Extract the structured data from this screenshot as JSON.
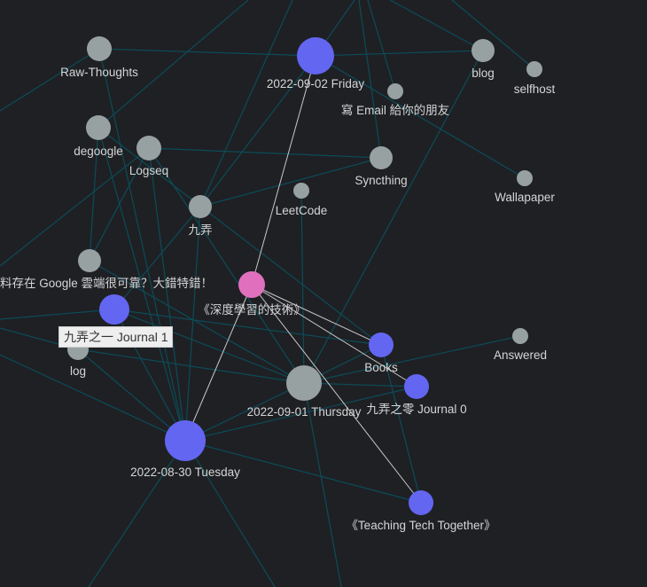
{
  "colors": {
    "background": "#1f2024",
    "edge": "#0b4c58",
    "highlight_edge": "#c8c8c8",
    "page_node": "#97a1a1",
    "journal_node": "#6366f1",
    "selected_node": "#e070be",
    "label": "#d4d6d6"
  },
  "nodes": [
    {
      "id": "raw",
      "label": "Raw-Thoughts",
      "kind": "page"
    },
    {
      "id": "fri",
      "label": "2022-09-02 Friday",
      "kind": "journal"
    },
    {
      "id": "blog",
      "label": "blog",
      "kind": "page"
    },
    {
      "id": "selfhost",
      "label": "selfhost",
      "kind": "page"
    },
    {
      "id": "email",
      "label": "寫 Email 給你的朋友",
      "kind": "page"
    },
    {
      "id": "degoogle",
      "label": "degoogle",
      "kind": "page"
    },
    {
      "id": "logseq",
      "label": "Logseq",
      "kind": "page"
    },
    {
      "id": "syncthing",
      "label": "Syncthing",
      "kind": "page"
    },
    {
      "id": "wall",
      "label": "Wallapaper",
      "kind": "page"
    },
    {
      "id": "leet",
      "label": "LeetCode",
      "kind": "page"
    },
    {
      "id": "jiu",
      "label": "九弄",
      "kind": "page"
    },
    {
      "id": "google",
      "label": "料存在 Google 雲端很可靠？大錯特錯！",
      "kind": "page"
    },
    {
      "id": "deep",
      "label": "《深度學習的技術》",
      "kind": "selected"
    },
    {
      "id": "j1",
      "label": "九弄之一 Journal 1",
      "kind": "journal",
      "tooltip": true
    },
    {
      "id": "log",
      "label": "log",
      "kind": "page"
    },
    {
      "id": "books",
      "label": "Books",
      "kind": "journal"
    },
    {
      "id": "answered",
      "label": "Answered",
      "kind": "page"
    },
    {
      "id": "j0",
      "label": "九弄之零 Journal 0",
      "kind": "journal"
    },
    {
      "id": "thu",
      "label": "2022-09-01 Thursday",
      "kind": "page"
    },
    {
      "id": "tue",
      "label": "2022-08-30 Tuesday",
      "kind": "journal"
    },
    {
      "id": "teach",
      "label": "《Teaching Tech Together》",
      "kind": "journal"
    }
  ],
  "edges": [
    [
      "deep",
      "fri",
      1
    ],
    [
      "deep",
      "tue",
      1
    ],
    [
      "deep",
      "books",
      1
    ],
    [
      "deep",
      "j0",
      1
    ],
    [
      "deep",
      "teach",
      1
    ],
    [
      "raw",
      "fri",
      0
    ],
    [
      "fri",
      "blog",
      0
    ],
    [
      "fri",
      "wall",
      0
    ],
    [
      "fri",
      "jiu",
      0
    ],
    [
      "blog",
      "thu",
      0
    ],
    [
      "logseq",
      "syncthing",
      0
    ],
    [
      "syncthing",
      "jiu",
      0
    ],
    [
      "leet",
      "thu",
      0
    ],
    [
      "raw",
      "tue",
      0
    ],
    [
      "degoogle",
      "tue",
      0
    ],
    [
      "degoogle",
      "google",
      0
    ],
    [
      "logseq",
      "tue",
      0
    ],
    [
      "logseq",
      "google",
      0
    ],
    [
      "jiu",
      "tue",
      0
    ],
    [
      "jiu",
      "j1",
      0
    ],
    [
      "google",
      "thu",
      0
    ],
    [
      "j1",
      "thu",
      0
    ],
    [
      "j1",
      "tue",
      0
    ],
    [
      "log",
      "thu",
      0
    ],
    [
      "log",
      "tue",
      0
    ],
    [
      "thu",
      "answered",
      0
    ],
    [
      "thu",
      "books",
      0
    ],
    [
      "thu",
      "j0",
      0
    ],
    [
      "tue",
      "thu",
      0
    ],
    [
      "tue",
      "j0",
      0
    ],
    [
      "tue",
      "teach",
      0
    ],
    [
      "books",
      "teach",
      0
    ],
    [
      "degoogle",
      "books",
      0
    ],
    [
      "logseq",
      "thu",
      0
    ],
    [
      "j1",
      "books",
      0
    ]
  ]
}
